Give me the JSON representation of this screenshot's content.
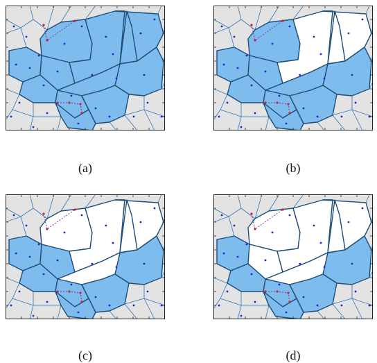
{
  "figure": {
    "panels": [
      {
        "id": "a",
        "caption": "(a)",
        "white_cells": []
      },
      {
        "id": "b",
        "caption": "(b)",
        "white_cells": [
          3,
          4,
          5
        ]
      },
      {
        "id": "c",
        "caption": "(c)",
        "white_cells": [
          0,
          3,
          4,
          5,
          8
        ]
      },
      {
        "id": "d",
        "caption": "(d)",
        "white_cells": [
          0,
          2,
          3,
          4,
          5,
          8
        ]
      }
    ],
    "colors": {
      "selected_fill": "#7FBCEE",
      "unselected_fill": "#E3E3E3",
      "white_fill": "#FFFFFF",
      "edge": "#2E75B6",
      "region_border": "#1F4E79",
      "site_dot": "#1E22CC",
      "highlight_dot": "#CC1F3A",
      "path_line": "#6B3FA0"
    }
  }
}
